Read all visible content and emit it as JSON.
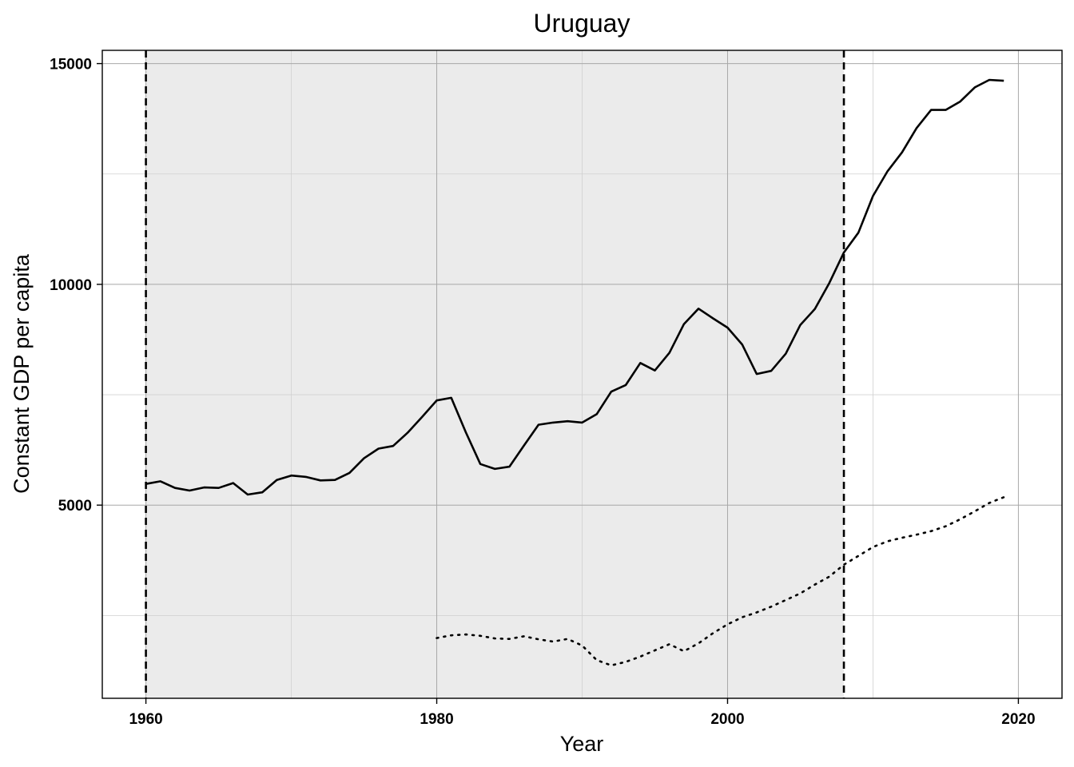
{
  "chart_data": {
    "type": "line",
    "title": "Uruguay",
    "xlabel": "Year",
    "ylabel": "Constant GDP per capita",
    "xlim": [
      1957,
      2023
    ],
    "ylim": [
      625,
      15300
    ],
    "x_ticks": [
      1960,
      1980,
      2000,
      2020
    ],
    "y_ticks": [
      5000,
      10000,
      15000
    ],
    "x_minor_gridlines": [
      1970,
      1990,
      2010
    ],
    "y_minor_gridlines": [
      2500,
      7500,
      12500
    ],
    "grid": true,
    "shaded_region": {
      "x_start": 1960,
      "x_end": 2008,
      "color": "#ebebeb"
    },
    "vertical_lines": [
      {
        "x": 1960,
        "style": "dashed"
      },
      {
        "x": 2008,
        "style": "dashed"
      }
    ],
    "series": [
      {
        "style": "solid",
        "color": "#000000",
        "x": [
          1960,
          1961,
          1962,
          1963,
          1964,
          1965,
          1966,
          1967,
          1968,
          1969,
          1970,
          1971,
          1972,
          1973,
          1974,
          1975,
          1976,
          1977,
          1978,
          1979,
          1980,
          1981,
          1982,
          1983,
          1984,
          1985,
          1986,
          1987,
          1988,
          1989,
          1990,
          1991,
          1992,
          1993,
          1994,
          1995,
          1996,
          1997,
          1998,
          1999,
          2000,
          2001,
          2002,
          2003,
          2004,
          2005,
          2006,
          2007,
          2008,
          2009,
          2010,
          2011,
          2012,
          2013,
          2014,
          2015,
          2016,
          2017,
          2018,
          2019
        ],
        "values": [
          5480,
          5540,
          5390,
          5330,
          5400,
          5390,
          5500,
          5240,
          5290,
          5570,
          5670,
          5640,
          5560,
          5570,
          5730,
          6060,
          6280,
          6340,
          6640,
          7000,
          7370,
          7430,
          6650,
          5930,
          5820,
          5870,
          6350,
          6820,
          6870,
          6900,
          6870,
          7060,
          7570,
          7720,
          8220,
          8050,
          8450,
          9100,
          9450,
          9230,
          9020,
          8640,
          7970,
          8040,
          8430,
          9080,
          9440,
          10030,
          10720,
          11170,
          12000,
          12560,
          12990,
          13540,
          13950,
          13950,
          14140,
          14460,
          14630,
          14610
        ]
      },
      {
        "style": "dotted",
        "color": "#000000",
        "x": [
          1980,
          1981,
          1982,
          1983,
          1984,
          1985,
          1986,
          1987,
          1988,
          1989,
          1990,
          1991,
          1992,
          1993,
          1994,
          1995,
          1996,
          1997,
          1998,
          1999,
          2000,
          2001,
          2002,
          2003,
          2004,
          2005,
          2006,
          2007,
          2008,
          2009,
          2010,
          2011,
          2012,
          2013,
          2014,
          2015,
          2016,
          2017,
          2018,
          2019
        ],
        "values": [
          1990,
          2050,
          2070,
          2040,
          1980,
          1970,
          2030,
          1960,
          1910,
          1970,
          1820,
          1490,
          1370,
          1450,
          1570,
          1710,
          1850,
          1690,
          1870,
          2100,
          2300,
          2460,
          2570,
          2700,
          2850,
          3000,
          3200,
          3380,
          3650,
          3850,
          4050,
          4180,
          4260,
          4330,
          4410,
          4520,
          4680,
          4860,
          5050,
          5180
        ]
      }
    ]
  }
}
